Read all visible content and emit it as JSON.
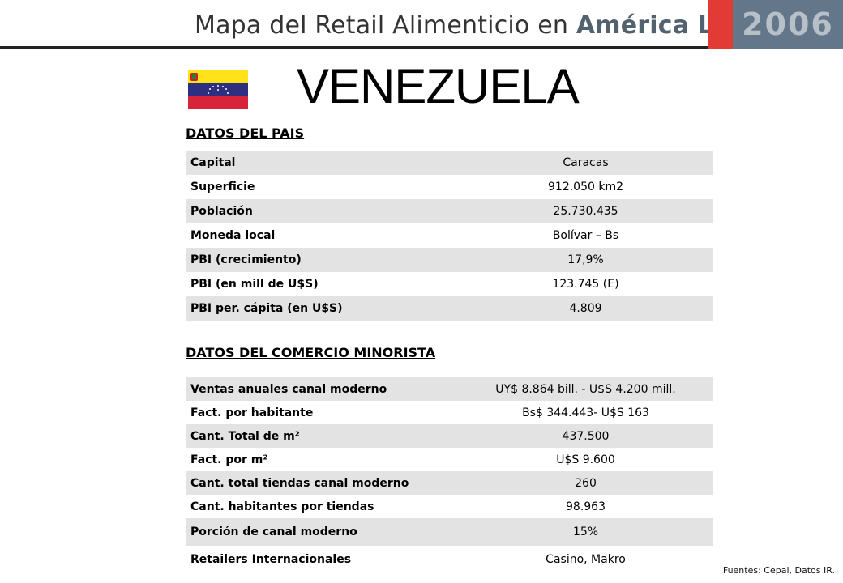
{
  "header": {
    "title_main": "Mapa del Retail Alimenticio en ",
    "title_accent": "América Latina",
    "year": "2006"
  },
  "country": "VENEZUELA",
  "pais": {
    "section_title": "DATOS DEL PAIS",
    "rows": [
      {
        "label": "Capital",
        "value": "Caracas"
      },
      {
        "label": "Superficie",
        "value": "912.050 km2"
      },
      {
        "label": "Población",
        "value": "25.730.435"
      },
      {
        "label": "Moneda local",
        "value": "Bolívar – Bs"
      },
      {
        "label": "PBI (crecimiento)",
        "value": "17,9%"
      },
      {
        "label": "PBI (en mill de U$S)",
        "value": "123.745 (E)"
      },
      {
        "label": "PBI per. cápita (en U$S)",
        "value": "4.809"
      }
    ]
  },
  "comercio": {
    "section_title": "DATOS DEL COMERCIO MINORISTA",
    "rows": [
      {
        "label": "Ventas anuales canal moderno",
        "value": "UY$ 8.864 bill. - U$S 4.200 mill."
      },
      {
        "label": "Fact. por habitante",
        "value": "Bs$ 344.443- U$S 163"
      },
      {
        "label": "Cant. Total de m²",
        "value": "437.500"
      },
      {
        "label": "Fact. por m²",
        "value": "U$S 9.600"
      },
      {
        "label": "Cant. total tiendas canal moderno",
        "value": "260"
      },
      {
        "label": "Cant. habitantes por tiendas",
        "value": "98.963"
      },
      {
        "label": "Porción de canal moderno",
        "value": "15%"
      },
      {
        "label": "Retailers Internacionales",
        "value": "Casino, Makro"
      }
    ]
  },
  "source": "Fuentes: Cepal, Datos IR.",
  "flag_colors": {
    "yellow": "#ffe21a",
    "blue": "#2e2f80",
    "red": "#d8243a",
    "stars": "#ffffff"
  }
}
